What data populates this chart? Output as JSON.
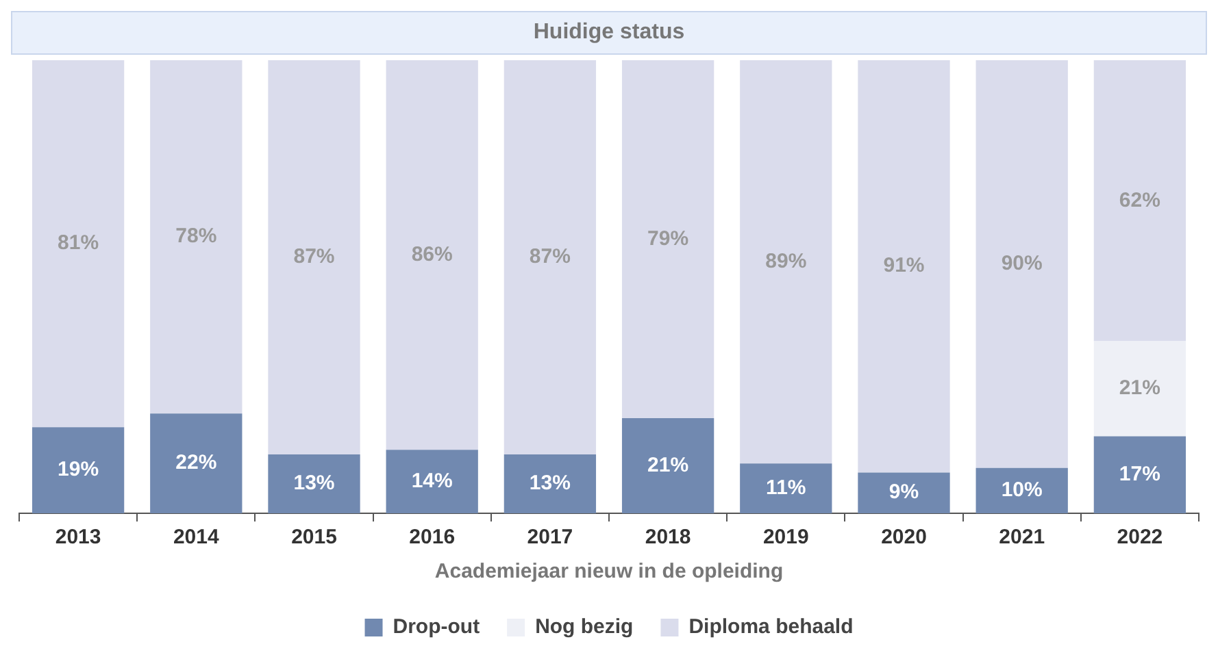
{
  "chart_data": {
    "type": "bar",
    "title": "Huidige status",
    "xlabel": "Academiejaar nieuw in de opleiding",
    "categories": [
      "2013",
      "2014",
      "2015",
      "2016",
      "2017",
      "2018",
      "2019",
      "2020",
      "2021",
      "2022"
    ],
    "stacked": true,
    "ylim": [
      0,
      100
    ],
    "tick_labels": "x",
    "grid": false,
    "legend": "bottom",
    "series": [
      {
        "name": "Drop-out",
        "color": "#7189b0",
        "values": [
          19,
          22,
          13,
          14,
          13,
          21,
          11,
          9,
          10,
          17
        ],
        "value_labels": [
          "19%",
          "22%",
          "13%",
          "14%",
          "13%",
          "21%",
          "11%",
          "9%",
          "10%",
          "17%"
        ]
      },
      {
        "name": "Nog bezig",
        "color": "#eef0f6",
        "values": [
          null,
          null,
          null,
          null,
          null,
          null,
          null,
          null,
          null,
          21
        ],
        "value_labels": [
          null,
          null,
          null,
          null,
          null,
          null,
          null,
          null,
          null,
          "21%"
        ]
      },
      {
        "name": "Diploma behaald",
        "color": "#dadcec",
        "values": [
          81,
          78,
          87,
          86,
          87,
          79,
          89,
          91,
          90,
          62
        ],
        "value_labels": [
          "81%",
          "78%",
          "87%",
          "86%",
          "87%",
          "79%",
          "89%",
          "91%",
          "90%",
          "62%"
        ]
      }
    ]
  }
}
